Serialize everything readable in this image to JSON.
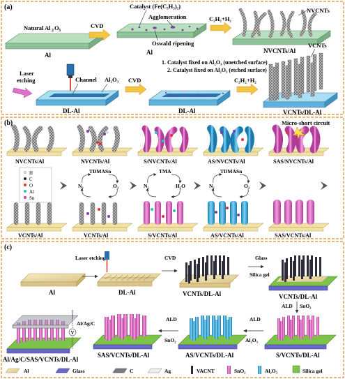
{
  "panels": {
    "a": {
      "tag": "(a)",
      "row1": {
        "al_top": "Natural Al",
        "al_top_sub": "2",
        "al_top_mid": "O",
        "al_top_sub2": "3",
        "al_label": "Al",
        "cvd": "CVD",
        "catalyst": "Catalyst (Fe(C₅H₅)₂)",
        "agglomeration": "Agglomeration",
        "oswald": "Oswald ripening",
        "al_mid_label": "Al",
        "gas": "C₂H₂+H₂",
        "nvcnts_tag": "NVCNTs",
        "nvcnts_al": "NVCNTs/Al"
      },
      "row2": {
        "laser": "Laser",
        "etching": "etching",
        "channel": "Channel",
        "al2o3": "Al₂O₃",
        "dl_al_1": "DL-Al",
        "cvd": "CVD",
        "note1": "1. Catalyst fixed on Al₂O₃ (unetched surface)",
        "note2": "2. Catalyst fixed on Al₂O₃ (etched surface)",
        "dl_al_2": "DL-Al",
        "gas": "C₂H₂+H₂",
        "vcnts_tag": "VCNTs",
        "vcnts_dl": "VCNTs/DL-Al"
      }
    },
    "b": {
      "tag": "(b)",
      "microshort": "Micro-short circuit",
      "top_labels": [
        "NVCNTs/Al",
        "NVCNTs/Al",
        "S/NVCNTs/Al",
        "AS/NVCNTs/Al",
        "SAS/NVCNTs/Al"
      ],
      "bottom_labels": [
        "VCNTs/Al",
        "VCNTs/Al",
        "S/VCNTs/Al",
        "AS/VCNTs/Al",
        "SAS/VCNTs/Al"
      ],
      "legend": [
        "H",
        "C",
        "O",
        "Al",
        "Sn"
      ],
      "cycle1": {
        "top": "TDMASn",
        "left": "N₂",
        "right": "O₃"
      },
      "cycle2": {
        "top": "TMA",
        "left": "N₂",
        "right": "H₂O"
      },
      "cycle3": {
        "top": "TDMASn",
        "left": "N₂",
        "right": "O₃"
      }
    },
    "c": {
      "tag": "(c)",
      "al": "Al",
      "laser": "Laser etching",
      "dl_al": "DL-Al",
      "cvd": "CVD",
      "vcnts_dl": "VCNTs/DL-Al",
      "glass": "Glass",
      "silica": "Silica gel",
      "vcnts_dl2": "VCNTs/DL-Al",
      "ald1": "ALD",
      "sno2_1": "SnO₂",
      "s_vcnts": "S/VCNTs/DL-Al",
      "ald2": "ALD",
      "al2o3": "Al₂O₃",
      "as_vcnts": "AS/VCNTs/DL-Al",
      "ald3": "ALD",
      "sno2_2": "SnO₂",
      "sas_vcnts": "SAS/VCNTs/DL-Al",
      "v": "V",
      "agc": "Al/Ag/C",
      "final": "Al/Ag/C/SAS/VCNTs/DL-Al"
    }
  },
  "legend_c": [
    "Al",
    "Glass",
    "C",
    "Ag",
    "VACNT",
    "SnO₂",
    "Al₂O₃",
    "Silica gel"
  ],
  "colors": {
    "al": "#e8d9a6",
    "al2o3": "#7ec8e8",
    "cnt": "#6a6a6a",
    "sno2": "#e070c8",
    "al2o3_shell": "#28a8d8",
    "silica": "#7dc24a",
    "glass": "#6868c8",
    "arrow": "#f4c542",
    "border": "#d9882f"
  }
}
